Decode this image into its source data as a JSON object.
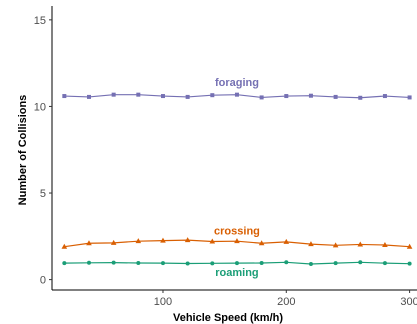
{
  "chart_data": {
    "type": "line",
    "xlabel": "Vehicle Speed (km/h)",
    "ylabel": "Number of Collisions",
    "xlim": [
      10,
      306
    ],
    "ylim": [
      -0.6,
      15.8
    ],
    "x_ticks": [
      100,
      200,
      300
    ],
    "y_ticks": [
      0,
      5,
      10,
      15
    ],
    "grid": false,
    "legend": "none (direct labels)",
    "x": [
      20,
      40,
      60,
      80,
      100,
      120,
      140,
      160,
      180,
      200,
      220,
      240,
      260,
      280,
      300
    ],
    "series": [
      {
        "name": "foraging",
        "marker": "square",
        "color": "#7570b3",
        "label_x": 160,
        "label_y": 11.4,
        "values": [
          10.6,
          10.55,
          10.68,
          10.68,
          10.6,
          10.55,
          10.65,
          10.68,
          10.52,
          10.6,
          10.62,
          10.55,
          10.5,
          10.6,
          10.52
        ]
      },
      {
        "name": "crossing",
        "marker": "triangle",
        "color": "#d95f02",
        "label_x": 160,
        "label_y": 2.85,
        "values": [
          1.9,
          2.1,
          2.12,
          2.22,
          2.25,
          2.28,
          2.2,
          2.22,
          2.1,
          2.18,
          2.05,
          1.98,
          2.03,
          2.0,
          1.9
        ]
      },
      {
        "name": "roaming",
        "marker": "circle",
        "color": "#1b9e77",
        "label_x": 160,
        "label_y": 0.45,
        "values": [
          0.95,
          0.97,
          0.98,
          0.96,
          0.95,
          0.93,
          0.94,
          0.95,
          0.96,
          1.0,
          0.9,
          0.95,
          1.0,
          0.95,
          0.92
        ]
      }
    ]
  }
}
